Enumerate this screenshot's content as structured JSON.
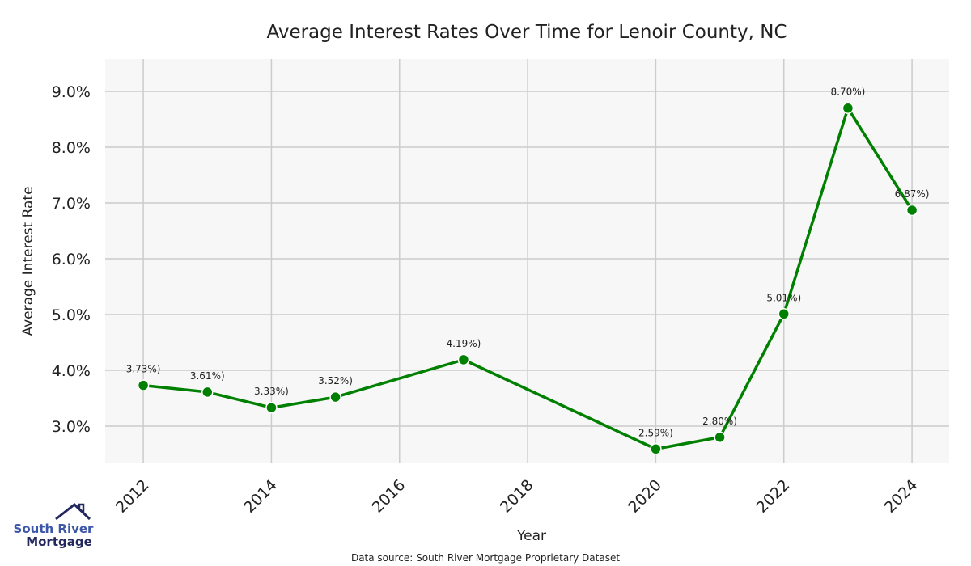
{
  "chart_data": {
    "type": "line",
    "title": "Average Interest Rates Over Time for Lenoir County, NC",
    "xlabel": "Year",
    "ylabel": "Average Interest Rate",
    "x": [
      2012,
      2013,
      2014,
      2015,
      2017,
      2020,
      2021,
      2022,
      2023,
      2024
    ],
    "values": [
      3.73,
      3.61,
      3.33,
      3.52,
      4.19,
      2.59,
      2.8,
      5.01,
      8.7,
      6.87
    ],
    "data_labels": [
      "3.73%)",
      "3.61%)",
      "3.33%)",
      "3.52%)",
      "4.19%)",
      "2.59%)",
      "2.80%)",
      "5.01%)",
      "8.70%)",
      "6.87%)"
    ],
    "xticks": [
      2012,
      2014,
      2016,
      2018,
      2020,
      2022,
      2024
    ],
    "xtick_labels": [
      "2012",
      "2014",
      "2016",
      "2018",
      "2020",
      "2022",
      "2024"
    ],
    "yticks": [
      3,
      4,
      5,
      6,
      7,
      8,
      9
    ],
    "ytick_labels": [
      "3.0%",
      "4.0%",
      "5.0%",
      "6.0%",
      "7.0%",
      "8.0%",
      "9.0%"
    ],
    "xlim": [
      2011.405,
      2024.58
    ],
    "ylim": [
      2.333,
      9.58
    ],
    "grid": true,
    "line_color": "#008000",
    "plot_background": "#f7f7f7"
  },
  "footer": {
    "source": "Data source: South River Mortgage Proprietary Dataset",
    "logo_line1": "South River",
    "logo_line2": "Mortgage"
  }
}
